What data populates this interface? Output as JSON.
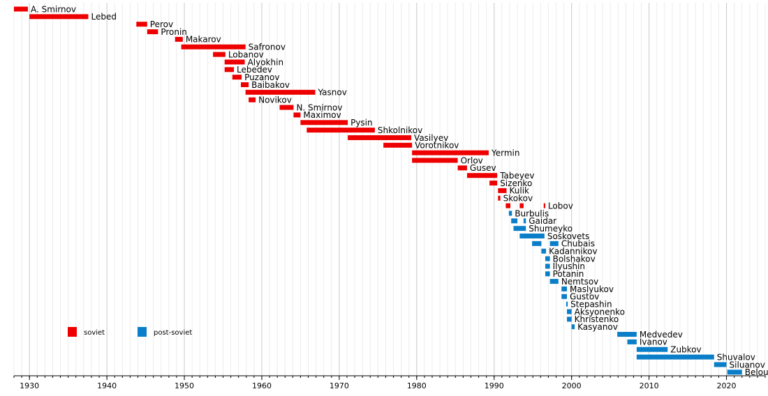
{
  "chart_data": {
    "type": "timeline",
    "xlim": [
      1928,
      2025
    ],
    "x_ticks": [
      1930,
      1940,
      1950,
      1960,
      1970,
      1980,
      1990,
      2000,
      2010,
      2020
    ],
    "grid": "vertical yearly lines",
    "colors": {
      "soviet": "#ee0000",
      "post-soviet": "#0a7ec8"
    },
    "legend": [
      {
        "label": "soviet",
        "category": "soviet"
      },
      {
        "label": "post-soviet",
        "category": "post-soviet"
      }
    ],
    "entries": [
      {
        "name": "A. Smirnov",
        "category": "soviet",
        "periods": [
          [
            1928.0,
            1929.8
          ]
        ]
      },
      {
        "name": "Lebed",
        "category": "soviet",
        "periods": [
          [
            1930.0,
            1937.6
          ]
        ]
      },
      {
        "name": "Perov",
        "category": "soviet",
        "periods": [
          [
            1943.8,
            1945.2
          ]
        ]
      },
      {
        "name": "Pronin",
        "category": "soviet",
        "periods": [
          [
            1945.2,
            1946.6
          ]
        ]
      },
      {
        "name": "Makarov",
        "category": "soviet",
        "periods": [
          [
            1948.8,
            1949.8
          ]
        ]
      },
      {
        "name": "Safronov",
        "category": "soviet",
        "periods": [
          [
            1949.6,
            1957.9
          ]
        ]
      },
      {
        "name": "Lobanov",
        "category": "soviet",
        "periods": [
          [
            1953.7,
            1955.3
          ]
        ]
      },
      {
        "name": "Alyokhin",
        "category": "soviet",
        "periods": [
          [
            1955.2,
            1957.8
          ]
        ]
      },
      {
        "name": "Lebedev",
        "category": "soviet",
        "periods": [
          [
            1955.2,
            1956.4
          ]
        ]
      },
      {
        "name": "Puzanov",
        "category": "soviet",
        "periods": [
          [
            1956.2,
            1957.4
          ]
        ]
      },
      {
        "name": "Baibakov",
        "category": "soviet",
        "periods": [
          [
            1957.3,
            1958.3
          ]
        ]
      },
      {
        "name": "Yasnov",
        "category": "soviet",
        "periods": [
          [
            1957.9,
            1966.9
          ]
        ]
      },
      {
        "name": "Novikov",
        "category": "soviet",
        "periods": [
          [
            1958.3,
            1959.2
          ]
        ]
      },
      {
        "name": "N. Smirnov",
        "category": "soviet",
        "periods": [
          [
            1962.3,
            1964.1
          ]
        ]
      },
      {
        "name": "Maximov",
        "category": "soviet",
        "periods": [
          [
            1964.1,
            1965.0
          ]
        ]
      },
      {
        "name": "Pysin",
        "category": "soviet",
        "periods": [
          [
            1965.0,
            1971.1
          ]
        ]
      },
      {
        "name": "Shkolnikov",
        "category": "soviet",
        "periods": [
          [
            1965.8,
            1974.6
          ]
        ]
      },
      {
        "name": "Vasilyev",
        "category": "soviet",
        "periods": [
          [
            1971.1,
            1979.3
          ]
        ]
      },
      {
        "name": "Vorotnikov",
        "category": "soviet",
        "periods": [
          [
            1975.7,
            1979.4
          ]
        ]
      },
      {
        "name": "Yermin",
        "category": "soviet",
        "periods": [
          [
            1979.4,
            1989.3
          ]
        ]
      },
      {
        "name": "Orlov",
        "category": "soviet",
        "periods": [
          [
            1979.4,
            1985.3
          ]
        ]
      },
      {
        "name": "Gusev",
        "category": "soviet",
        "periods": [
          [
            1985.3,
            1986.5
          ]
        ]
      },
      {
        "name": "Tabeyev",
        "category": "soviet",
        "periods": [
          [
            1986.5,
            1990.4
          ]
        ]
      },
      {
        "name": "Sizenko",
        "category": "soviet",
        "periods": [
          [
            1989.4,
            1990.4
          ]
        ]
      },
      {
        "name": "Kulik",
        "category": "soviet",
        "periods": [
          [
            1990.5,
            1991.6
          ]
        ]
      },
      {
        "name": "Skokov",
        "category": "soviet",
        "periods": [
          [
            1990.5,
            1990.8
          ]
        ]
      },
      {
        "name": "Lobov",
        "category": "soviet",
        "periods": [
          [
            1991.5,
            1992.1
          ],
          [
            1993.3,
            1993.8
          ],
          [
            1996.4,
            1996.6
          ]
        ]
      },
      {
        "name": "Burbulis",
        "category": "post-soviet",
        "periods": [
          [
            1991.9,
            1992.3
          ]
        ]
      },
      {
        "name": "Gaidar",
        "category": "post-soviet",
        "periods": [
          [
            1992.2,
            1993.0
          ],
          [
            1993.8,
            1994.1
          ]
        ]
      },
      {
        "name": "Shumeyko",
        "category": "post-soviet",
        "periods": [
          [
            1992.5,
            1994.1
          ]
        ]
      },
      {
        "name": "Soskovets",
        "category": "post-soviet",
        "periods": [
          [
            1993.3,
            1996.5
          ]
        ]
      },
      {
        "name": "Chubais",
        "category": "post-soviet",
        "periods": [
          [
            1994.9,
            1996.1
          ],
          [
            1997.2,
            1998.3
          ]
        ]
      },
      {
        "name": "Kadannikov",
        "category": "post-soviet",
        "periods": [
          [
            1996.1,
            1996.7
          ]
        ]
      },
      {
        "name": "Bolshakov",
        "category": "post-soviet",
        "periods": [
          [
            1996.6,
            1997.2
          ]
        ]
      },
      {
        "name": "Ilyushin",
        "category": "post-soviet",
        "periods": [
          [
            1996.6,
            1997.2
          ]
        ]
      },
      {
        "name": "Potanin",
        "category": "post-soviet",
        "periods": [
          [
            1996.6,
            1997.2
          ]
        ]
      },
      {
        "name": "Nemtsov",
        "category": "post-soviet",
        "periods": [
          [
            1997.2,
            1998.3
          ]
        ]
      },
      {
        "name": "Maslyukov",
        "category": "post-soviet",
        "periods": [
          [
            1998.7,
            1999.4
          ]
        ]
      },
      {
        "name": "Gustov",
        "category": "post-soviet",
        "periods": [
          [
            1998.7,
            1999.4
          ]
        ]
      },
      {
        "name": "Stepashin",
        "category": "post-soviet",
        "periods": [
          [
            1999.3,
            1999.5
          ]
        ]
      },
      {
        "name": "Aksyonenko",
        "category": "post-soviet",
        "periods": [
          [
            1999.4,
            2000.0
          ]
        ]
      },
      {
        "name": "Khristenko",
        "category": "post-soviet",
        "periods": [
          [
            1999.4,
            2000.0
          ]
        ]
      },
      {
        "name": "Kasyanov",
        "category": "post-soviet",
        "periods": [
          [
            2000.0,
            2000.4
          ]
        ]
      },
      {
        "name": "Medvedev",
        "category": "post-soviet",
        "periods": [
          [
            2005.9,
            2008.4
          ]
        ]
      },
      {
        "name": "Ivanov",
        "category": "post-soviet",
        "periods": [
          [
            2007.2,
            2008.4
          ]
        ]
      },
      {
        "name": "Zubkov",
        "category": "post-soviet",
        "periods": [
          [
            2008.4,
            2012.4
          ]
        ]
      },
      {
        "name": "Shuvalov",
        "category": "post-soviet",
        "periods": [
          [
            2008.4,
            2018.4
          ]
        ]
      },
      {
        "name": "Siluanov",
        "category": "post-soviet",
        "periods": [
          [
            2018.4,
            2020.0
          ]
        ]
      },
      {
        "name": "Belousov",
        "category": "post-soviet",
        "periods": [
          [
            2020.1,
            2022.0
          ]
        ]
      }
    ]
  }
}
